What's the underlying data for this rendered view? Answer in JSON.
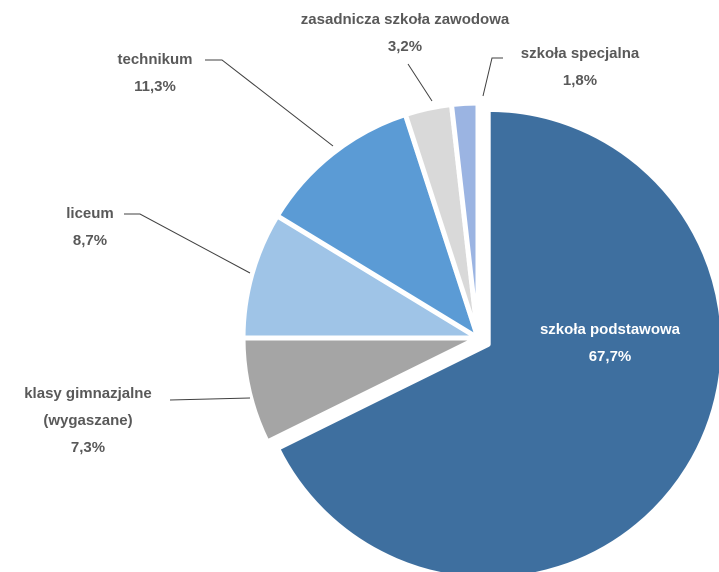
{
  "chart_data": {
    "type": "pie",
    "categories": [
      "szkoła podstawowa",
      "klasy gimnazjalne (wygaszane)",
      "liceum",
      "technikum",
      "zasadnicza szkoła zawodowa",
      "szkoła specjalna"
    ],
    "values": [
      67.7,
      7.3,
      8.7,
      11.3,
      3.2,
      1.8
    ],
    "value_labels": [
      "67,7%",
      "7,3%",
      "8,7%",
      "11,3%",
      "3,2%",
      "1,8%"
    ],
    "colors": [
      "#3e6f9f",
      "#a5a5a5",
      "#9fc4e7",
      "#5b9bd5",
      "#d9d9d9",
      "#9bb4e2"
    ]
  }
}
